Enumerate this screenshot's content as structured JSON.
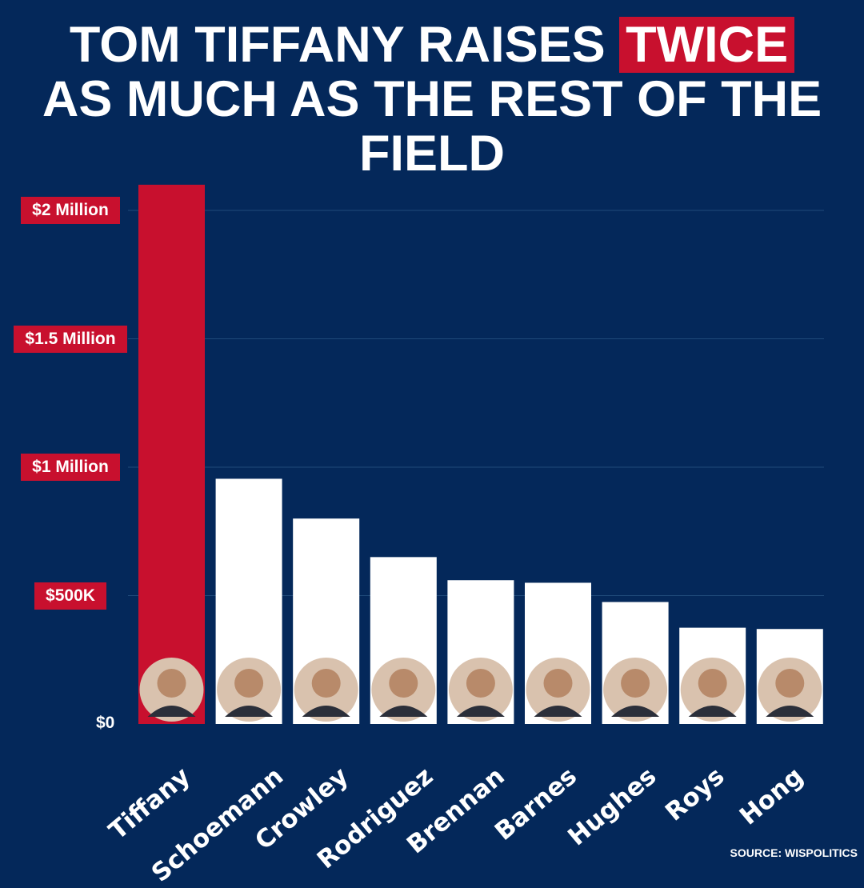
{
  "title": {
    "line1_pre": "TOM TIFFANY RAISES ",
    "line1_highlight": "TWICE",
    "line2": "AS MUCH AS THE REST OF THE",
    "line3": "FIELD"
  },
  "source": "SOURCE: WISPOLITICS",
  "colors": {
    "background": "#04285a",
    "accent": "#c8102e",
    "bar_default": "#ffffff",
    "grid": "#1f4a7a"
  },
  "chart_data": {
    "type": "bar",
    "categories": [
      "Tiffany",
      "Schoemann",
      "Crowley",
      "Rodriguez",
      "Brennan",
      "Barnes",
      "Hughes",
      "Roys",
      "Hong"
    ],
    "values": [
      2100000,
      955000,
      800000,
      650000,
      560000,
      550000,
      475000,
      375000,
      370000
    ],
    "highlight": [
      "Tiffany"
    ],
    "ylim": [
      0,
      2100000
    ],
    "yticks": [
      {
        "value": 0,
        "label": "$0"
      },
      {
        "value": 500000,
        "label": "$500K"
      },
      {
        "value": 1000000,
        "label": "$1 Million"
      },
      {
        "value": 1500000,
        "label": "$1.5 Million"
      },
      {
        "value": 2000000,
        "label": "$2 Million"
      }
    ],
    "grid": true
  }
}
